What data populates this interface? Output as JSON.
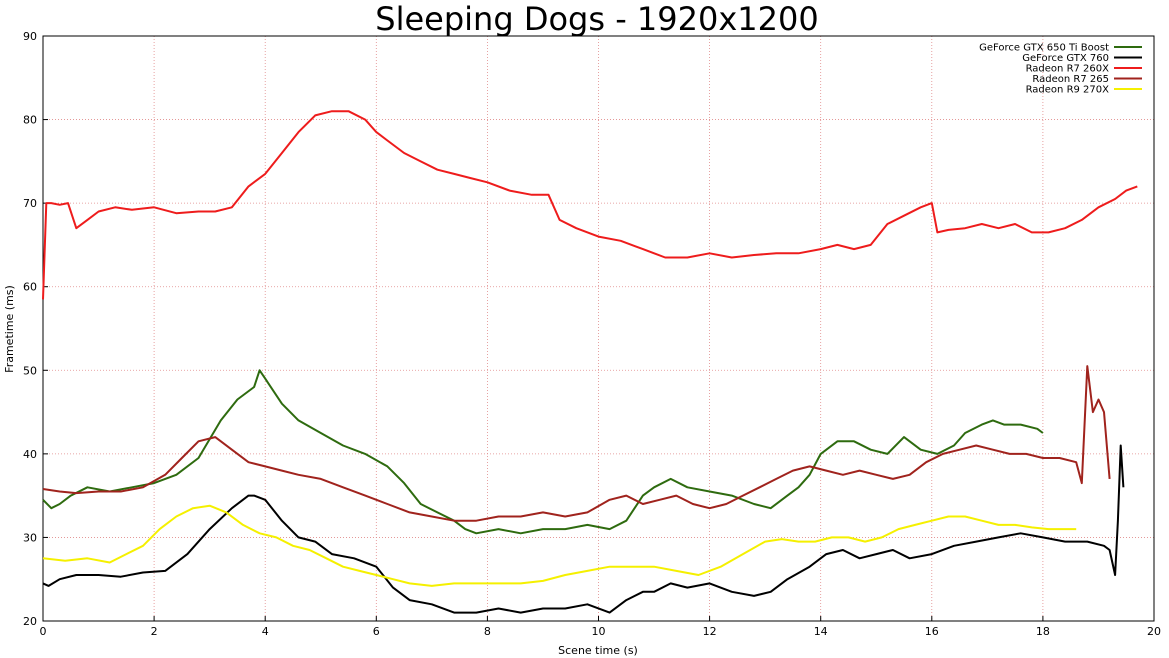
{
  "chart_data": {
    "type": "line",
    "title": "Sleeping Dogs - 1920x1200",
    "xlabel": "Scene time (s)",
    "ylabel": "Frametime (ms)",
    "xlim": [
      0,
      20
    ],
    "ylim": [
      20,
      90
    ],
    "xticks": [
      "0",
      "2",
      "4",
      "6",
      "8",
      "10",
      "12",
      "14",
      "16",
      "18",
      "20"
    ],
    "yticks": [
      "20",
      "30",
      "40",
      "50",
      "60",
      "70",
      "80",
      "90"
    ],
    "grid": true,
    "legend_position": "top-right",
    "series": [
      {
        "name": "GeForce GTX 650 Ti Boost",
        "color": "#2e6b0f",
        "x": [
          0,
          0.15,
          0.3,
          0.5,
          0.8,
          1.2,
          1.6,
          2.0,
          2.4,
          2.8,
          3.2,
          3.5,
          3.8,
          3.9,
          4.0,
          4.3,
          4.6,
          5.0,
          5.4,
          5.8,
          6.2,
          6.5,
          6.8,
          7.1,
          7.4,
          7.6,
          7.8,
          8.2,
          8.6,
          9.0,
          9.4,
          9.8,
          10.2,
          10.5,
          10.8,
          11.0,
          11.3,
          11.6,
          12.0,
          12.4,
          12.8,
          13.1,
          13.4,
          13.6,
          13.8,
          14.0,
          14.3,
          14.6,
          14.9,
          15.2,
          15.5,
          15.8,
          16.1,
          16.4,
          16.6,
          16.9,
          17.1,
          17.3,
          17.6,
          17.9,
          18.0
        ],
        "y": [
          34.5,
          33.5,
          34,
          35,
          36,
          35.5,
          36,
          36.5,
          37.5,
          39.5,
          44,
          46.5,
          48,
          50,
          49,
          46,
          44,
          42.5,
          41,
          40,
          38.5,
          36.5,
          34,
          33,
          32,
          31,
          30.5,
          31,
          30.5,
          31,
          31,
          31.5,
          31,
          32,
          35,
          36,
          37,
          36,
          35.5,
          35,
          34,
          33.5,
          35,
          36,
          37.5,
          40,
          41.5,
          41.5,
          40.5,
          40,
          42,
          40.5,
          40,
          41,
          42.5,
          43.5,
          44,
          43.5,
          43.5,
          43,
          42.5
        ]
      },
      {
        "name": "GeForce GTX 760",
        "color": "#000000",
        "x": [
          0,
          0.1,
          0.3,
          0.6,
          1.0,
          1.4,
          1.8,
          2.2,
          2.6,
          3.0,
          3.4,
          3.7,
          3.8,
          4.0,
          4.3,
          4.6,
          4.9,
          5.2,
          5.6,
          6.0,
          6.3,
          6.6,
          7.0,
          7.4,
          7.8,
          8.2,
          8.6,
          9.0,
          9.4,
          9.8,
          10.2,
          10.5,
          10.8,
          11.0,
          11.3,
          11.6,
          12.0,
          12.4,
          12.8,
          13.1,
          13.4,
          13.8,
          14.1,
          14.4,
          14.7,
          15.0,
          15.3,
          15.6,
          16.0,
          16.4,
          16.8,
          17.2,
          17.6,
          18.0,
          18.4,
          18.8,
          19.1,
          19.2,
          19.3,
          19.35,
          19.4,
          19.45
        ],
        "y": [
          24.5,
          24.2,
          25,
          25.5,
          25.5,
          25.3,
          25.8,
          26,
          28,
          31,
          33.5,
          35,
          35,
          34.5,
          32,
          30,
          29.5,
          28,
          27.5,
          26.5,
          24,
          22.5,
          22,
          21,
          21,
          21.5,
          21,
          21.5,
          21.5,
          22,
          21,
          22.5,
          23.5,
          23.5,
          24.5,
          24,
          24.5,
          23.5,
          23,
          23.5,
          25,
          26.5,
          28,
          28.5,
          27.5,
          28,
          28.5,
          27.5,
          28,
          29,
          29.5,
          30,
          30.5,
          30,
          29.5,
          29.5,
          29,
          28.5,
          25.5,
          32,
          41,
          36
        ]
      },
      {
        "name": "Radeon R7 260X",
        "color": "#ee1c1c",
        "x": [
          0,
          0.06,
          0.15,
          0.3,
          0.45,
          0.6,
          0.8,
          1.0,
          1.3,
          1.6,
          2.0,
          2.4,
          2.8,
          3.1,
          3.4,
          3.7,
          4.0,
          4.3,
          4.6,
          4.9,
          5.2,
          5.5,
          5.8,
          6.0,
          6.2,
          6.5,
          6.8,
          7.1,
          7.4,
          7.7,
          8.0,
          8.4,
          8.8,
          9.1,
          9.3,
          9.6,
          10.0,
          10.4,
          10.8,
          11.2,
          11.6,
          12.0,
          12.4,
          12.8,
          13.2,
          13.6,
          14.0,
          14.3,
          14.6,
          14.9,
          15.2,
          15.5,
          15.8,
          16.0,
          16.1,
          16.3,
          16.6,
          16.9,
          17.2,
          17.5,
          17.8,
          18.1,
          18.4,
          18.7,
          19.0,
          19.3,
          19.5,
          19.7
        ],
        "y": [
          58.5,
          70,
          70,
          69.8,
          70,
          67,
          68,
          69,
          69.5,
          69.2,
          69.5,
          68.8,
          69,
          69,
          69.5,
          72,
          73.5,
          76,
          78.5,
          80.5,
          81,
          81,
          80,
          78.5,
          77.5,
          76,
          75,
          74,
          73.5,
          73,
          72.5,
          71.5,
          71,
          71,
          68,
          67,
          66,
          65.5,
          64.5,
          63.5,
          63.5,
          64,
          63.5,
          63.8,
          64,
          64,
          64.5,
          65,
          64.5,
          65,
          67.5,
          68.5,
          69.5,
          70,
          66.5,
          66.8,
          67,
          67.5,
          67,
          67.5,
          66.5,
          66.5,
          67,
          68,
          69.5,
          70.5,
          71.5,
          72
        ]
      },
      {
        "name": "Radeon R7 265",
        "color": "#a0231d",
        "x": [
          0,
          0.3,
          0.6,
          1.0,
          1.4,
          1.8,
          2.2,
          2.5,
          2.8,
          3.1,
          3.4,
          3.7,
          4.0,
          4.3,
          4.6,
          5.0,
          5.4,
          5.8,
          6.2,
          6.6,
          7.0,
          7.4,
          7.8,
          8.2,
          8.6,
          9.0,
          9.4,
          9.8,
          10.2,
          10.5,
          10.8,
          11.1,
          11.4,
          11.7,
          12.0,
          12.3,
          12.6,
          12.9,
          13.2,
          13.5,
          13.8,
          14.1,
          14.4,
          14.7,
          15.0,
          15.3,
          15.6,
          15.9,
          16.2,
          16.5,
          16.8,
          17.1,
          17.4,
          17.7,
          18.0,
          18.3,
          18.6,
          18.7,
          18.8,
          18.9,
          19.0,
          19.1,
          19.2
        ],
        "y": [
          35.8,
          35.5,
          35.3,
          35.5,
          35.5,
          36,
          37.5,
          39.5,
          41.5,
          42,
          40.5,
          39,
          38.5,
          38,
          37.5,
          37,
          36,
          35,
          34,
          33,
          32.5,
          32,
          32,
          32.5,
          32.5,
          33,
          32.5,
          33,
          34.5,
          35,
          34,
          34.5,
          35,
          34,
          33.5,
          34,
          35,
          36,
          37,
          38,
          38.5,
          38,
          37.5,
          38,
          37.5,
          37,
          37.5,
          39,
          40,
          40.5,
          41,
          40.5,
          40,
          40,
          39.5,
          39.5,
          39,
          36.5,
          50.5,
          45,
          46.5,
          45,
          37
        ]
      },
      {
        "name": "Radeon R9 270X",
        "color": "#f5f000",
        "x": [
          0,
          0.4,
          0.8,
          1.2,
          1.5,
          1.8,
          2.1,
          2.4,
          2.7,
          3.0,
          3.3,
          3.6,
          3.9,
          4.2,
          4.5,
          4.8,
          5.1,
          5.4,
          5.7,
          6.0,
          6.3,
          6.6,
          7.0,
          7.4,
          7.8,
          8.2,
          8.6,
          9.0,
          9.4,
          9.8,
          10.2,
          10.6,
          11.0,
          11.4,
          11.8,
          12.2,
          12.6,
          13.0,
          13.3,
          13.6,
          13.9,
          14.2,
          14.5,
          14.8,
          15.1,
          15.4,
          15.7,
          16.0,
          16.3,
          16.6,
          16.9,
          17.2,
          17.5,
          17.8,
          18.1,
          18.4,
          18.6
        ],
        "y": [
          27.5,
          27.2,
          27.5,
          27,
          28,
          29,
          31,
          32.5,
          33.5,
          33.8,
          33,
          31.5,
          30.5,
          30,
          29,
          28.5,
          27.5,
          26.5,
          26,
          25.5,
          25,
          24.5,
          24.2,
          24.5,
          24.5,
          24.5,
          24.5,
          24.8,
          25.5,
          26,
          26.5,
          26.5,
          26.5,
          26,
          25.5,
          26.5,
          28,
          29.5,
          29.8,
          29.5,
          29.5,
          30,
          30,
          29.5,
          30,
          31,
          31.5,
          32,
          32.5,
          32.5,
          32,
          31.5,
          31.5,
          31.2,
          31,
          31,
          31
        ]
      }
    ]
  }
}
